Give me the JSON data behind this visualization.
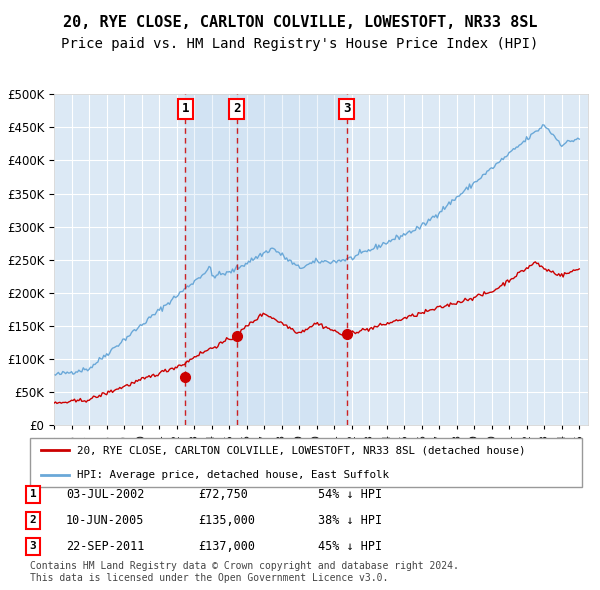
{
  "title": "20, RYE CLOSE, CARLTON COLVILLE, LOWESTOFT, NR33 8SL",
  "subtitle": "Price paid vs. HM Land Registry's House Price Index (HPI)",
  "ylim": [
    0,
    500000
  ],
  "yticks": [
    0,
    50000,
    100000,
    150000,
    200000,
    250000,
    300000,
    350000,
    400000,
    450000,
    500000
  ],
  "xlim_start": 1995.0,
  "xlim_end": 2025.5,
  "background_color": "#dce9f5",
  "grid_color": "#ffffff",
  "hpi_line_color": "#6aa8d8",
  "price_line_color": "#cc0000",
  "sale_marker_color": "#cc0000",
  "dashed_line_color": "#cc0000",
  "sale_points": [
    {
      "year": 2002.5,
      "price": 72750,
      "label": "1"
    },
    {
      "year": 2005.44,
      "price": 135000,
      "label": "2"
    },
    {
      "year": 2011.72,
      "price": 137000,
      "label": "3"
    }
  ],
  "legend_entries": [
    "20, RYE CLOSE, CARLTON COLVILLE, LOWESTOFT, NR33 8SL (detached house)",
    "HPI: Average price, detached house, East Suffolk"
  ],
  "table_rows": [
    {
      "num": "1",
      "date": "03-JUL-2002",
      "price": "£72,750",
      "hpi": "54% ↓ HPI"
    },
    {
      "num": "2",
      "date": "10-JUN-2005",
      "price": "£135,000",
      "hpi": "38% ↓ HPI"
    },
    {
      "num": "3",
      "date": "22-SEP-2011",
      "price": "£137,000",
      "hpi": "45% ↓ HPI"
    }
  ],
  "footer": "Contains HM Land Registry data © Crown copyright and database right 2024.\nThis data is licensed under the Open Government Licence v3.0.",
  "title_fontsize": 11,
  "subtitle_fontsize": 10,
  "tick_fontsize": 8.5
}
